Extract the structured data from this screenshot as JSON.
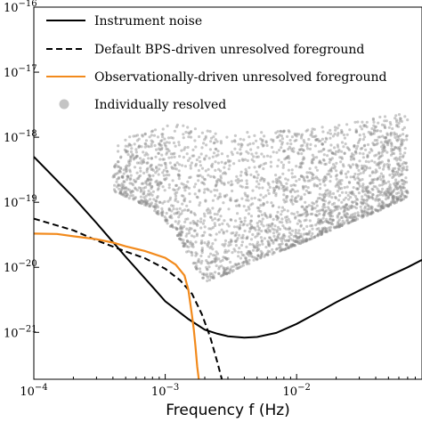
{
  "chart_data": {
    "type": "line",
    "title": "",
    "xlabel": "Frequency f (Hz)",
    "ylabel": "",
    "xscale": "log",
    "yscale": "log",
    "xlim": [
      0.0001,
      0.09
    ],
    "ylim": [
      1.9e-22,
      1e-16
    ],
    "grid": false,
    "legend_position": "top-left",
    "x_ticks": [
      {
        "value": 0.0001,
        "base": "10",
        "exp": "−4"
      },
      {
        "value": 0.001,
        "base": "10",
        "exp": "−3"
      },
      {
        "value": 0.01,
        "base": "10",
        "exp": "−2"
      }
    ],
    "y_ticks": [
      {
        "value": 1e-16,
        "base": "10",
        "exp": "−16"
      },
      {
        "value": 1e-17,
        "base": "10",
        "exp": "−17"
      },
      {
        "value": 1e-18,
        "base": "10",
        "exp": "−18"
      },
      {
        "value": 1e-19,
        "base": "10",
        "exp": "−19"
      },
      {
        "value": 1e-20,
        "base": "10",
        "exp": "−20"
      },
      {
        "value": 1e-21,
        "base": "10",
        "exp": "−21"
      }
    ],
    "series": [
      {
        "name": "Instrument noise",
        "style": "solid",
        "color": "#000000",
        "x": [
          0.0001,
          0.0002,
          0.0003,
          0.0005,
          0.0008,
          0.001,
          0.0015,
          0.002,
          0.0025,
          0.003,
          0.004,
          0.005,
          0.007,
          0.01,
          0.015,
          0.02,
          0.03,
          0.05,
          0.07,
          0.09
        ],
        "y": [
          5e-19,
          1.2e-19,
          4.8e-20,
          1.45e-20,
          5e-21,
          3e-21,
          1.6e-21,
          1.1e-21,
          9.5e-22,
          8.7e-22,
          8.3e-22,
          8.5e-22,
          9.8e-22,
          1.35e-21,
          2.1e-21,
          2.9e-21,
          4.4e-21,
          7.3e-21,
          1e-20,
          1.3e-20
        ]
      },
      {
        "name": "Default BPS-driven unresolved foreground",
        "style": "dashed",
        "color": "#000000",
        "x": [
          0.0001,
          0.0002,
          0.0003,
          0.0005,
          0.0007,
          0.001,
          0.0013,
          0.0016,
          0.0019,
          0.0022,
          0.0025,
          0.0027
        ],
        "y": [
          5.6e-20,
          3.7e-20,
          2.6e-20,
          1.75e-20,
          1.38e-20,
          9.5e-21,
          6.3e-21,
          3.9e-21,
          1.9e-21,
          8.5e-22,
          3.4e-22,
          1.9e-22
        ]
      },
      {
        "name": "Observationally-driven unresolved foreground",
        "style": "solid",
        "color": "#f28a1c",
        "x": [
          0.0001,
          0.00015,
          0.0002,
          0.0003,
          0.0004,
          0.0005,
          0.0007,
          0.001,
          0.0012,
          0.0014,
          0.0015,
          0.0016,
          0.00165,
          0.0017,
          0.00175,
          0.0018
        ],
        "y": [
          3.3e-20,
          3.25e-20,
          3e-20,
          2.7e-20,
          2.4e-20,
          2.1e-20,
          1.78e-20,
          1.4e-20,
          1.1e-20,
          7.5e-21,
          4.5e-21,
          1.8e-21,
          1.1e-21,
          6e-22,
          3e-22,
          1.9e-22
        ]
      },
      {
        "name": "Individually resolved",
        "style": "scatter",
        "color": "#8a8a8a",
        "description_points": "dense cloud of resolved sources",
        "region": {
          "x_range": [
            0.0004,
            0.07
          ],
          "lower_envelope_x": [
            0.0004,
            0.0008,
            0.0012,
            0.0016,
            0.002,
            0.003,
            0.005,
            0.01,
            0.02,
            0.04,
            0.07
          ],
          "lower_envelope_y": [
            1.5e-19,
            8e-20,
            3.5e-20,
            1.2e-20,
            6e-21,
            8e-21,
            1.3e-20,
            2.2e-20,
            4e-20,
            7e-20,
            1.2e-19
          ],
          "upper_envelope_x": [
            0.0004,
            0.0008,
            0.0012,
            0.0016,
            0.002,
            0.003,
            0.005,
            0.01,
            0.02,
            0.04,
            0.07
          ],
          "upper_envelope_y": [
            8e-19,
            1.4e-18,
            1.6e-18,
            1.5e-18,
            1.3e-18,
            1.2e-18,
            1.2e-18,
            1.3e-18,
            1.5e-18,
            2e-18,
            2.5e-18
          ]
        }
      }
    ]
  }
}
